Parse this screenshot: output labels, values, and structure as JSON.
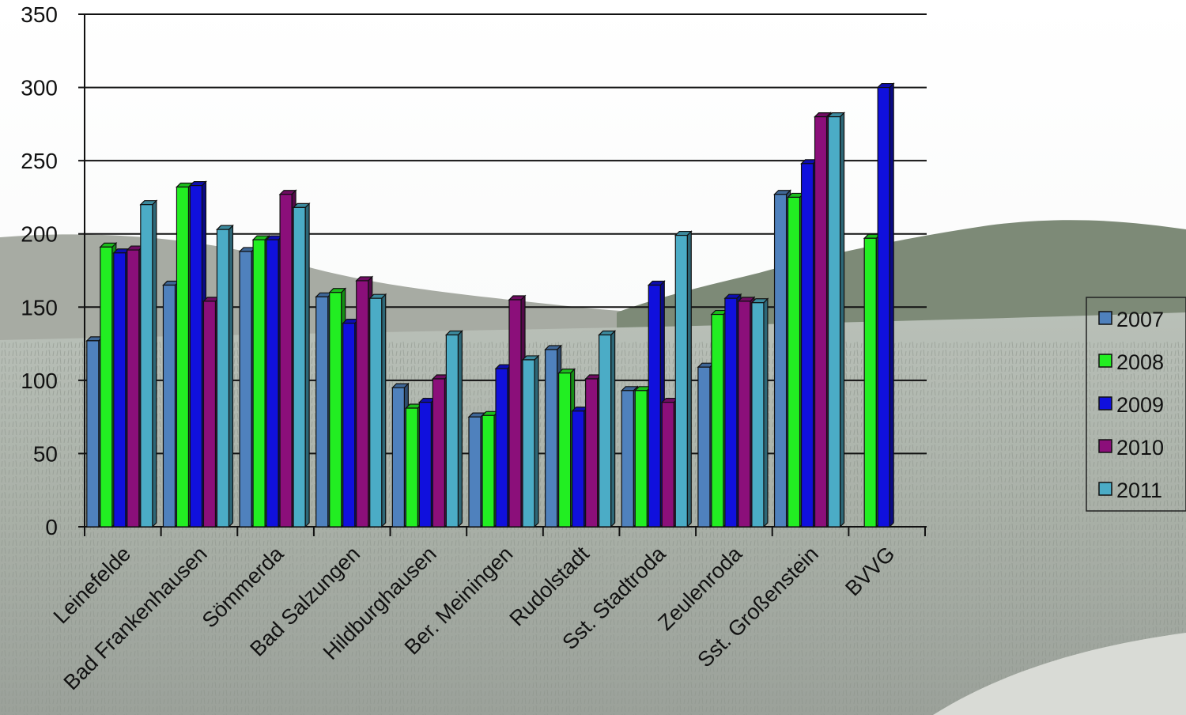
{
  "chart_data": {
    "type": "bar",
    "title": "",
    "xlabel": "",
    "ylabel": "",
    "ylim": [
      0,
      350
    ],
    "yticks": [
      0,
      50,
      100,
      150,
      200,
      250,
      300,
      350
    ],
    "grid": true,
    "legend_position": "right",
    "categories": [
      "Leinefelde",
      "Bad Frankenhausen",
      "Sömmerda",
      "Bad Salzungen",
      "Hildburghausen",
      "Ber. Meiningen",
      "Rudolstadt",
      "Sst. Stadtroda",
      "Zeulenroda",
      "Sst. Großenstein",
      "BVVG"
    ],
    "series": [
      {
        "name": "2007",
        "color": "#4f81bd",
        "values": [
          127,
          165,
          188,
          157,
          95,
          75,
          121,
          93,
          109,
          227,
          null
        ]
      },
      {
        "name": "2008",
        "color": "#22ee22",
        "values": [
          191,
          232,
          196,
          160,
          81,
          76,
          105,
          93,
          145,
          225,
          197
        ]
      },
      {
        "name": "2009",
        "color": "#1010dd",
        "values": [
          187,
          233,
          196,
          139,
          85,
          108,
          79,
          165,
          156,
          248,
          300
        ]
      },
      {
        "name": "2010",
        "color": "#8b0f7a",
        "values": [
          189,
          154,
          227,
          168,
          101,
          155,
          101,
          85,
          154,
          280,
          null
        ]
      },
      {
        "name": "2011",
        "color": "#4bacc6",
        "values": [
          220,
          203,
          218,
          156,
          131,
          114,
          131,
          199,
          153,
          280,
          null
        ]
      }
    ]
  }
}
